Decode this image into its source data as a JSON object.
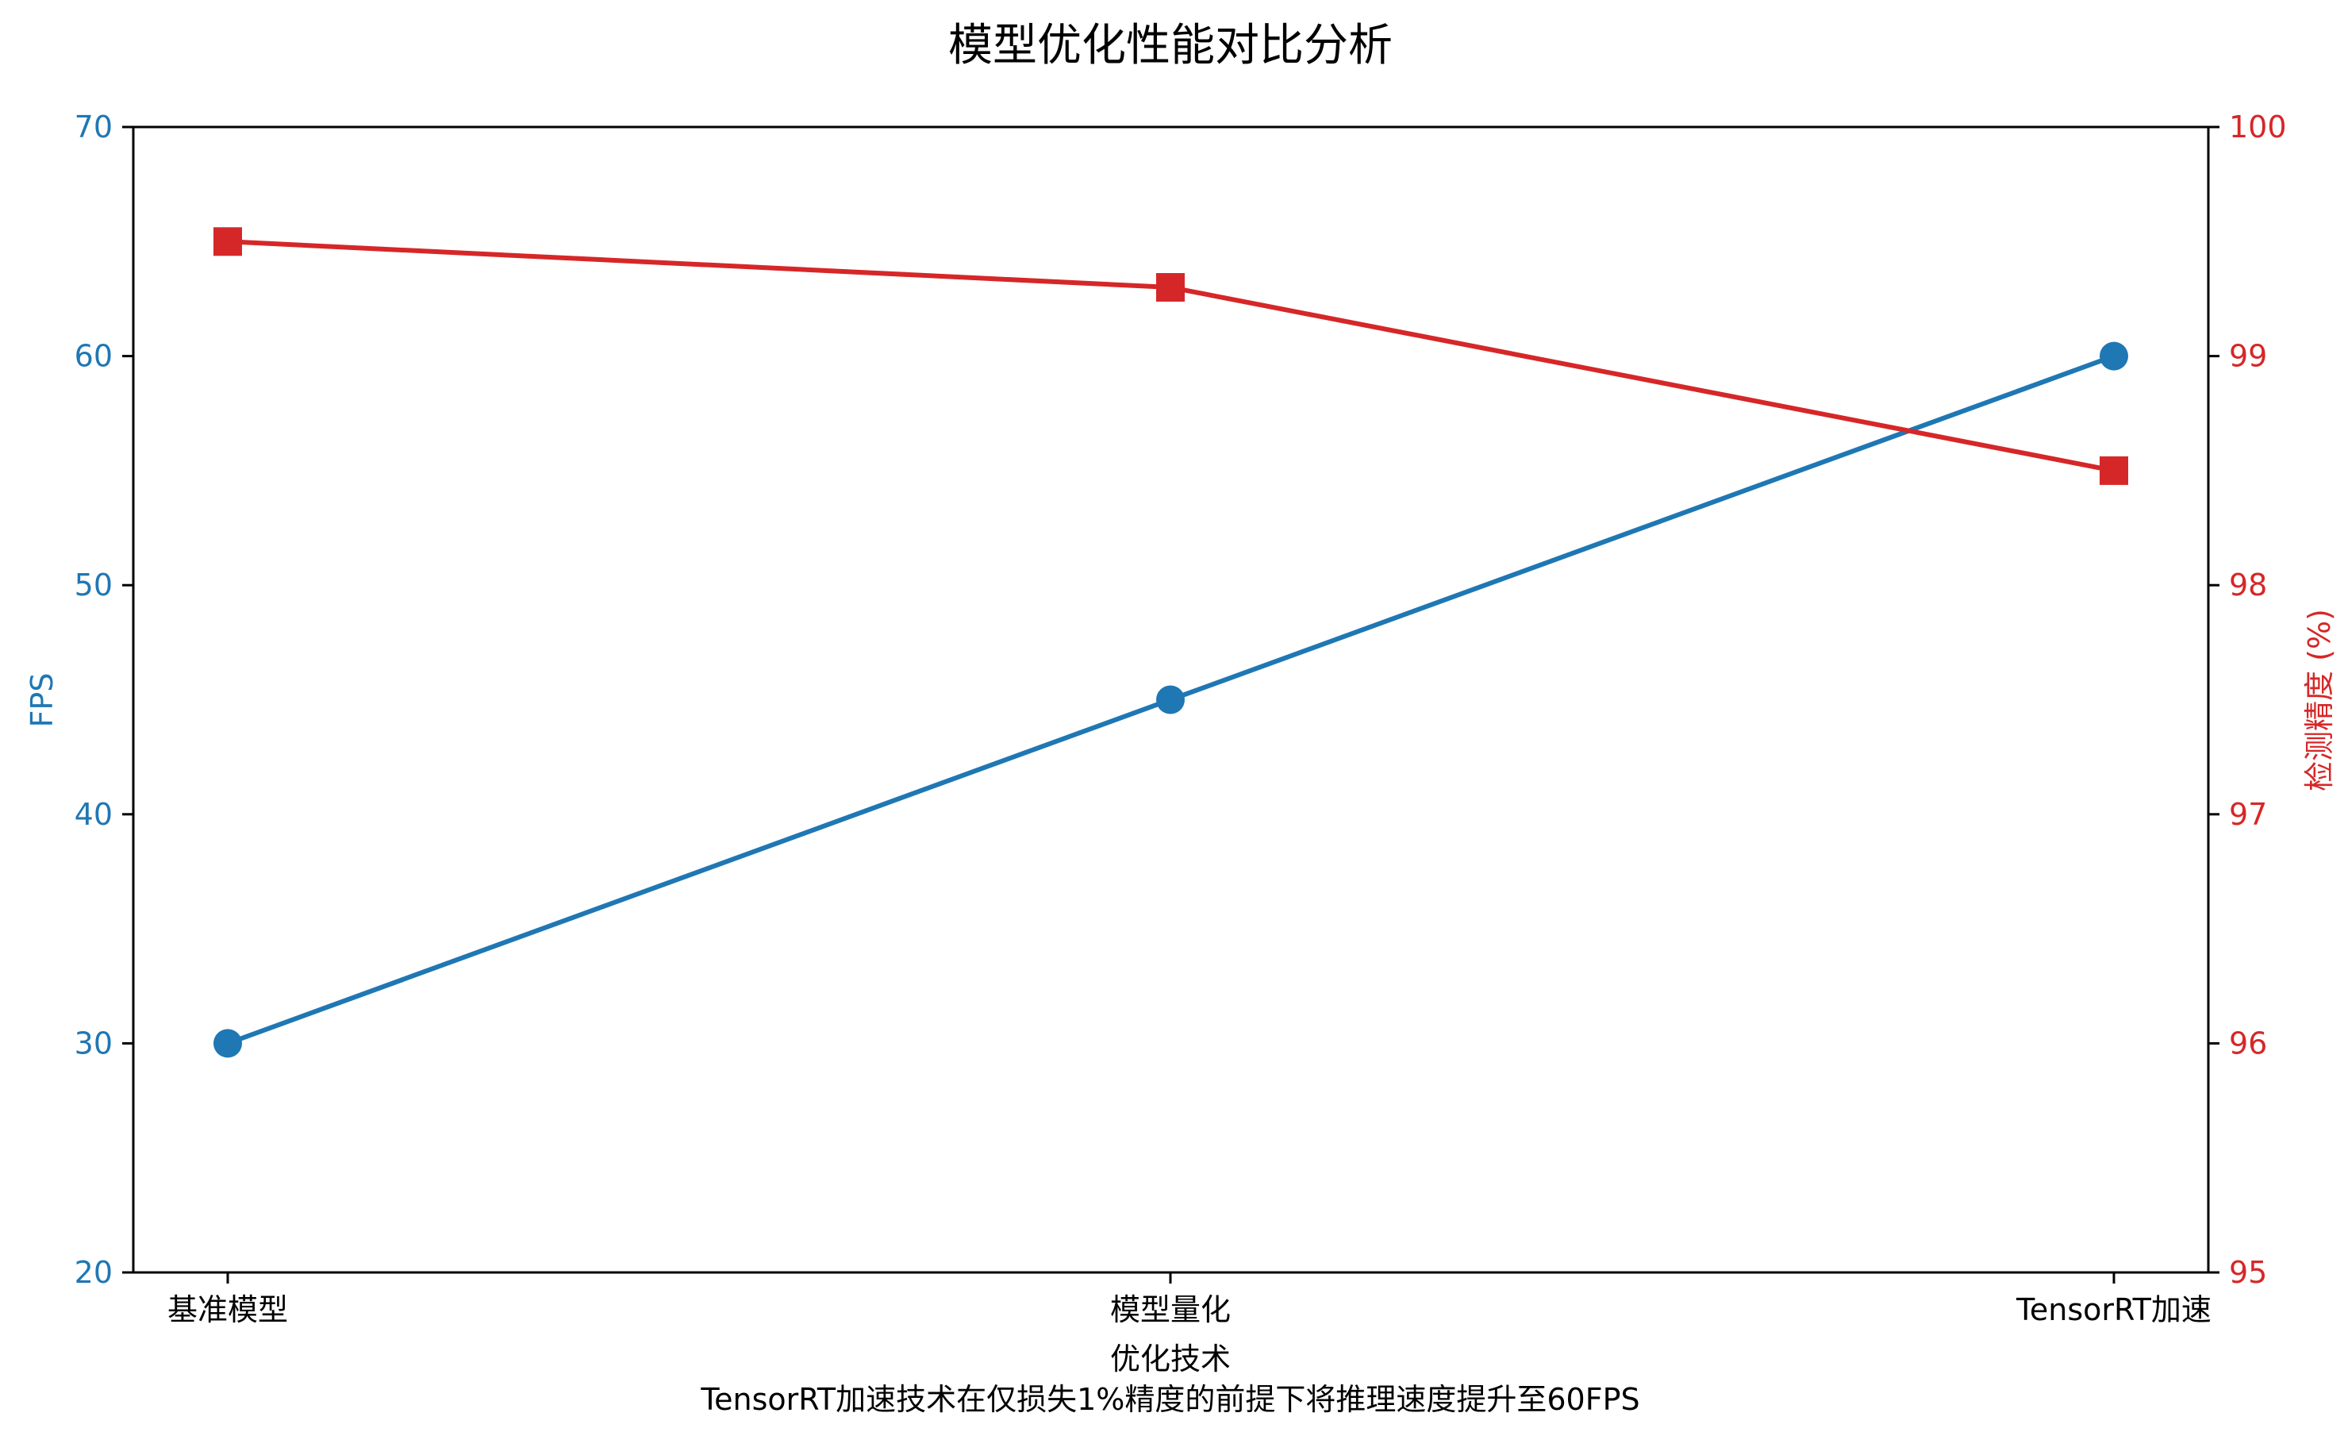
{
  "chart_data": {
    "type": "line",
    "title": "模型优化性能对比分析",
    "caption": "TensorRT加速技术在仅损失1%精度的前提下将推理速度提升至60FPS",
    "xlabel": "优化技术",
    "categories": [
      "基准模型",
      "模型量化",
      "TensorRT加速"
    ],
    "y_left": {
      "label": "FPS",
      "range": [
        20,
        70
      ],
      "ticks": [
        20,
        30,
        40,
        50,
        60,
        70
      ],
      "color": "#1f77b4"
    },
    "y_right": {
      "label": "检测精度 (%)",
      "range": [
        95,
        100
      ],
      "ticks": [
        95,
        96,
        97,
        98,
        99,
        100
      ],
      "color": "#d62728"
    },
    "series": [
      {
        "axis": "left",
        "color": "#1f77b4",
        "marker": "circle",
        "values": [
          30,
          45,
          60
        ]
      },
      {
        "axis": "right",
        "color": "#d62728",
        "marker": "square",
        "values": [
          99.5,
          99.3,
          98.5
        ]
      }
    ],
    "grid": false,
    "legend": "none"
  }
}
